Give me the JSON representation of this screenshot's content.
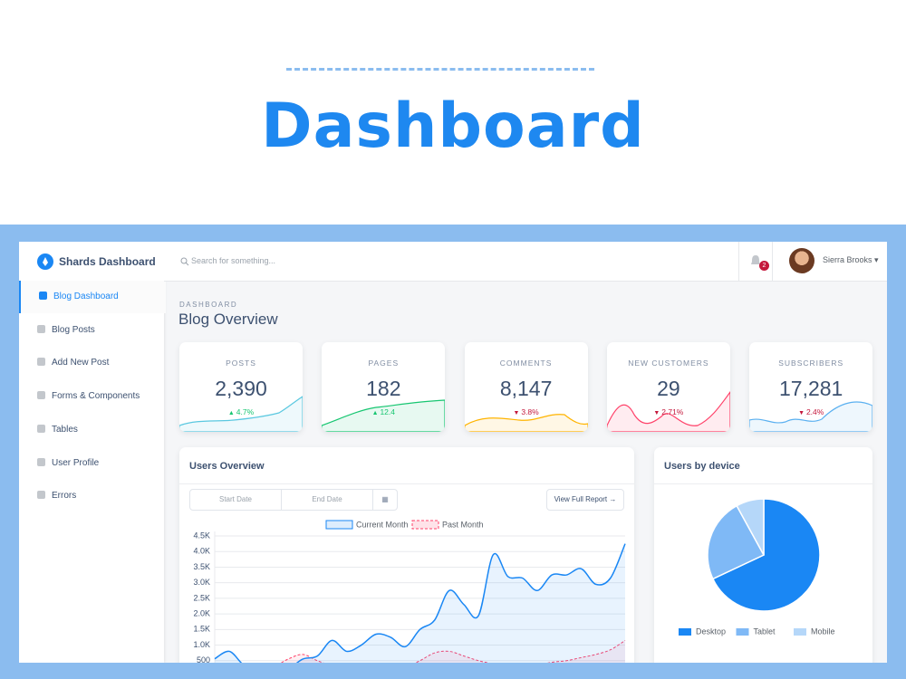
{
  "header": {
    "title": "Dashboard"
  },
  "sidebar": {
    "brand": "Shards Dashboard",
    "items": [
      "Blog Dashboard",
      "Blog Posts",
      "Add New Post",
      "Forms & Components",
      "Tables",
      "User Profile",
      "Errors"
    ]
  },
  "topbar": {
    "search": "Search for something...",
    "notifications": "2",
    "user": "Sierra Brooks"
  },
  "page": {
    "subtitle": "DASHBOARD",
    "title": "Blog Overview"
  },
  "stats": [
    {
      "label": "POSTS",
      "value": "2,390",
      "change": "4.7%",
      "trend": "up",
      "color": "#5ac8e0"
    },
    {
      "label": "PAGES",
      "value": "182",
      "change": "12.4",
      "trend": "up",
      "color": "#17c671"
    },
    {
      "label": "COMMENTS",
      "value": "8,147",
      "change": "3.8%",
      "trend": "down",
      "color": "#ffb400"
    },
    {
      "label": "NEW CUSTOMERS",
      "value": "29",
      "change": "2.71%",
      "trend": "down",
      "color": "#ff4169"
    },
    {
      "label": "SUBSCRIBERS",
      "value": "17,281",
      "change": "2.4%",
      "trend": "down",
      "color": "#5ab0f0"
    }
  ],
  "users_overview": {
    "title": "Users Overview",
    "start_date": "Start Date",
    "end_date": "End Date",
    "button": "View Full Report →"
  },
  "users_by_device": {
    "title": "Users by device"
  },
  "chart_data": [
    {
      "type": "line",
      "ylim": [
        0,
        4500
      ],
      "yticks": [
        {
          "value": 500,
          "label": "500"
        },
        {
          "value": 1000,
          "label": "1.0K"
        },
        {
          "value": 1500,
          "label": "1.5K"
        },
        {
          "value": 2000,
          "label": "2.0K"
        },
        {
          "value": 2500,
          "label": "2.5K"
        },
        {
          "value": 3000,
          "label": "3.0K"
        },
        {
          "value": 3500,
          "label": "3.5K"
        },
        {
          "value": 4000,
          "label": "4.0K"
        },
        {
          "value": 4500,
          "label": "4.5K"
        }
      ],
      "grid": true,
      "series": [
        {
          "name": "Current Month",
          "color": "#1a87f4",
          "values": [
            560,
            800,
            350,
            200,
            350,
            250,
            550,
            650,
            1150,
            800,
            1000,
            1350,
            1250,
            950,
            1500,
            1800,
            2750,
            2300,
            1950,
            3900,
            3200,
            3150,
            2750,
            3250,
            3250,
            3450,
            2950,
            3150,
            4250
          ]
        },
        {
          "name": "Past Month",
          "color": "#ff4169",
          "values": [
            300,
            250,
            200,
            250,
            300,
            550,
            700,
            500,
            350,
            300,
            250,
            300,
            350,
            300,
            500,
            750,
            800,
            650,
            500,
            400,
            350,
            300,
            350,
            450,
            500,
            600,
            700,
            850,
            1150
          ]
        }
      ]
    },
    {
      "type": "pie",
      "categories": [
        "Desktop",
        "Tablet",
        "Mobile"
      ],
      "values": [
        68,
        24,
        8
      ],
      "colors": [
        "#1a87f4",
        "#7fb9f6",
        "#b5d7f9"
      ]
    }
  ]
}
